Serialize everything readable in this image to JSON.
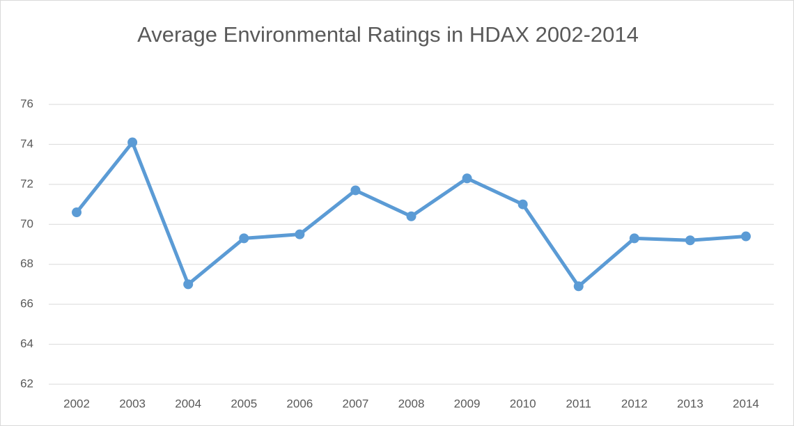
{
  "chart_data": {
    "type": "line",
    "title": "Average Environmental Ratings in HDAX 2002-2014",
    "categories": [
      "2002",
      "2003",
      "2004",
      "2005",
      "2006",
      "2007",
      "2008",
      "2009",
      "2010",
      "2011",
      "2012",
      "2013",
      "2014"
    ],
    "values": [
      70.6,
      74.1,
      67.0,
      69.3,
      69.5,
      71.7,
      70.4,
      72.3,
      71.0,
      66.9,
      69.3,
      69.2,
      69.4
    ],
    "color": "#5b9bd5",
    "ylim": [
      62,
      76
    ],
    "yticks": [
      62,
      64,
      66,
      68,
      70,
      72,
      74,
      76
    ],
    "grid": true
  }
}
